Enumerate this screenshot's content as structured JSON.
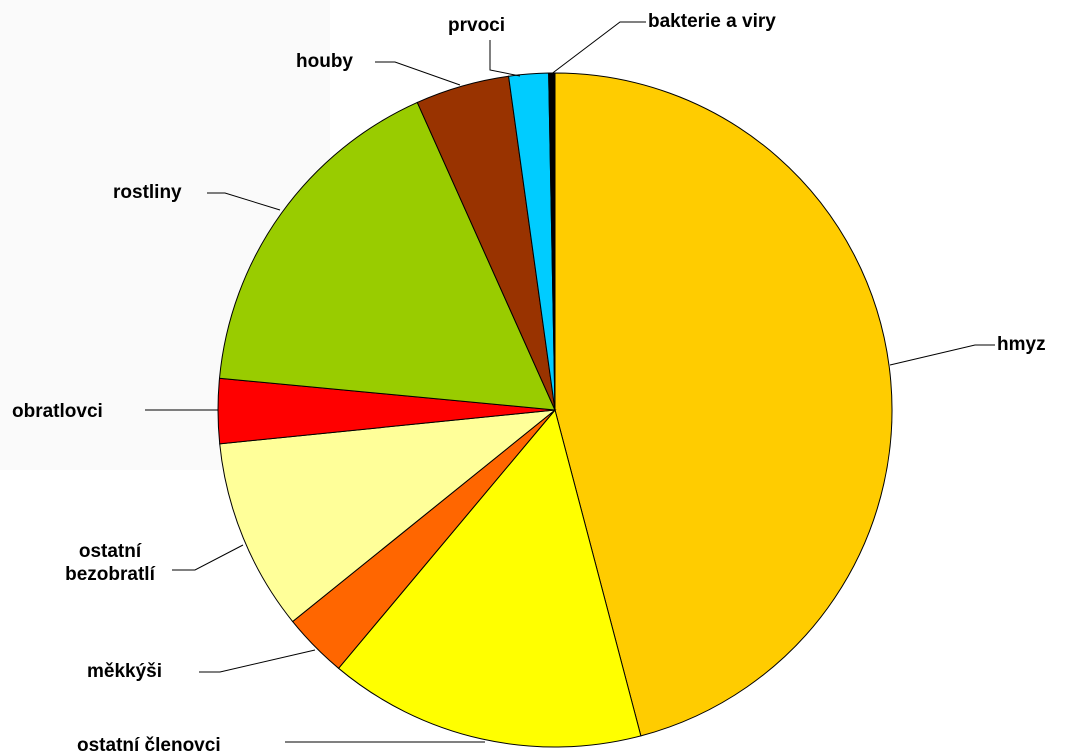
{
  "chart_data": {
    "type": "pie",
    "categories": [
      "hmyz",
      "ostatní členovci",
      "měkkýši",
      "ostatní bezobratlí",
      "obratlovci",
      "rostliny",
      "houby",
      "prvoci",
      "bakterie a viry"
    ],
    "values": [
      45.9,
      15.2,
      3.1,
      9.2,
      3.1,
      16.8,
      4.5,
      1.9,
      0.3
    ],
    "colors": [
      "#ffcc00",
      "#ffff00",
      "#ff6600",
      "#ffff99",
      "#ff0000",
      "#99cc00",
      "#993300",
      "#00ccff",
      "#000000"
    ]
  }
}
